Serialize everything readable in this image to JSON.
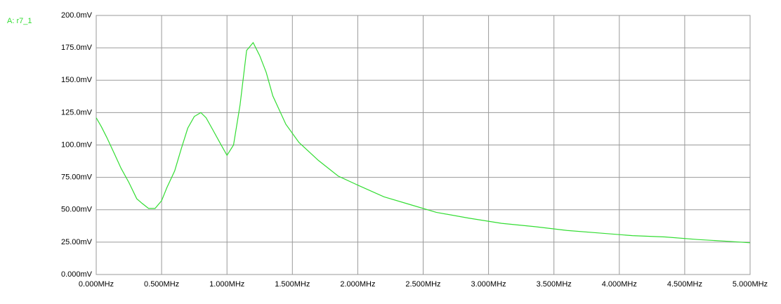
{
  "chart_data": {
    "type": "line",
    "x": [
      0,
      0.04,
      0.08,
      0.14,
      0.19,
      0.25,
      0.31,
      0.35,
      0.4,
      0.45,
      0.5,
      0.54,
      0.6,
      0.65,
      0.7,
      0.75,
      0.8,
      0.84,
      0.89,
      0.95,
      1.0,
      1.05,
      1.1,
      1.15,
      1.2,
      1.25,
      1.3,
      1.35,
      1.45,
      1.55,
      1.7,
      1.85,
      2.0,
      2.2,
      2.4,
      2.6,
      2.85,
      3.1,
      3.35,
      3.6,
      3.85,
      4.1,
      4.35,
      4.6,
      4.85,
      5.0
    ],
    "series": [
      {
        "name": "A: r7_1",
        "color": "#33dd33",
        "values": [
          121,
          114,
          106,
          93,
          82,
          71,
          58.5,
          55,
          51,
          51,
          57,
          67,
          80,
          97,
          113,
          122,
          125,
          121,
          112,
          101,
          92,
          100,
          131,
          173,
          179,
          169,
          156,
          138,
          116,
          102,
          88,
          76,
          69,
          60,
          54,
          48,
          43.5,
          39.5,
          37,
          34,
          32,
          30,
          29,
          27,
          25.5,
          24.5
        ]
      }
    ],
    "xlim": [
      0,
      5
    ],
    "xticks": [
      {
        "value": 0,
        "label": "0.000MHz"
      },
      {
        "value": 0.5,
        "label": "0.500MHz"
      },
      {
        "value": 1,
        "label": "1.000MHz"
      },
      {
        "value": 1.5,
        "label": "1.500MHz"
      },
      {
        "value": 2,
        "label": "2.000MHz"
      },
      {
        "value": 2.5,
        "label": "2.500MHz"
      },
      {
        "value": 3,
        "label": "3.000MHz"
      },
      {
        "value": 3.5,
        "label": "3.500MHz"
      },
      {
        "value": 4,
        "label": "4.000MHz"
      },
      {
        "value": 4.5,
        "label": "4.500MHz"
      },
      {
        "value": 5,
        "label": "5.000MHz"
      }
    ],
    "ylim": [
      0,
      200
    ],
    "yticks": [
      {
        "value": 0,
        "label": "0.000mV"
      },
      {
        "value": 25,
        "label": "25.00mV"
      },
      {
        "value": 50,
        "label": "50.00mV"
      },
      {
        "value": 75,
        "label": "75.00mV"
      },
      {
        "value": 100,
        "label": "100.0mV"
      },
      {
        "value": 125,
        "label": "125.0mV"
      },
      {
        "value": 150,
        "label": "150.0mV"
      },
      {
        "value": 175,
        "label": "175.0mV"
      },
      {
        "value": 200,
        "label": "200.0mV"
      }
    ],
    "grid": true
  }
}
